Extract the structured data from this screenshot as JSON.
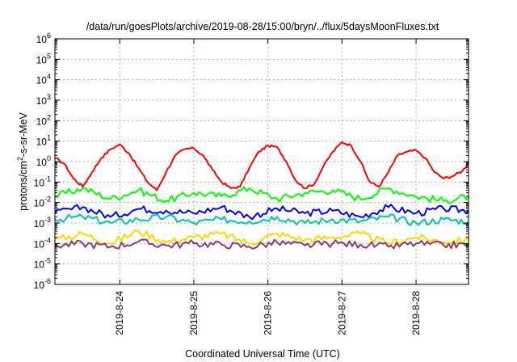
{
  "chart_data": {
    "type": "line",
    "title": "/data/run/goesPlots/archive/2019-08-28/15:00/bryn/../flux/5daysMoonFluxes.txt",
    "xlabel": "Coordinated Universal Time (UTC)",
    "ylabel": {
      "base": "protons/cm",
      "sup": "2",
      "rest": "-s-sr-MeV"
    },
    "y_scale": "log",
    "ylim": [
      1e-06,
      1000000.0
    ],
    "y_ticks": [
      {
        "value": 1e-06,
        "base": "10",
        "exp": "-6"
      },
      {
        "value": 1e-05,
        "base": "10",
        "exp": "-5"
      },
      {
        "value": 0.0001,
        "base": "10",
        "exp": "-4"
      },
      {
        "value": 0.001,
        "base": "10",
        "exp": "-3"
      },
      {
        "value": 0.01,
        "base": "10",
        "exp": "-2"
      },
      {
        "value": 0.1,
        "base": "10",
        "exp": "-1"
      },
      {
        "value": 1,
        "base": "10",
        "exp": "0"
      },
      {
        "value": 10.0,
        "base": "10",
        "exp": "1"
      },
      {
        "value": 100.0,
        "base": "10",
        "exp": "2"
      },
      {
        "value": 1000.0,
        "base": "10",
        "exp": "3"
      },
      {
        "value": 10000.0,
        "base": "10",
        "exp": "4"
      },
      {
        "value": 100000.0,
        "base": "10",
        "exp": "5"
      },
      {
        "value": 1000000.0,
        "base": "10",
        "exp": "6"
      }
    ],
    "xlim": [
      "2019-08-23 03:00",
      "2019-08-28 17:00"
    ],
    "x_ticks": [
      {
        "value": "2019-08-24 00:00",
        "label": "2019-8-24"
      },
      {
        "value": "2019-08-25 00:00",
        "label": "2019-8-25"
      },
      {
        "value": "2019-08-26 00:00",
        "label": "2019-8-26"
      },
      {
        "value": "2019-08-27 00:00",
        "label": "2019-8-27"
      },
      {
        "value": "2019-08-28 00:00",
        "label": "2019-8-28"
      }
    ],
    "grid": true,
    "legend": "none",
    "series": [
      {
        "color": "#ff0000",
        "x": [
          "2019-08-23 03:00",
          "2019-08-23 06:00",
          "2019-08-23 09:00",
          "2019-08-23 12:00",
          "2019-08-23 15:00",
          "2019-08-23 18:00",
          "2019-08-23 21:00",
          "2019-08-24 00:00",
          "2019-08-24 03:00",
          "2019-08-24 06:00",
          "2019-08-24 09:00",
          "2019-08-24 12:00",
          "2019-08-24 15:00",
          "2019-08-24 18:00",
          "2019-08-24 21:00",
          "2019-08-25 00:00",
          "2019-08-25 03:00",
          "2019-08-25 06:00",
          "2019-08-25 09:00",
          "2019-08-25 12:00",
          "2019-08-25 15:00",
          "2019-08-25 18:00",
          "2019-08-25 21:00",
          "2019-08-26 00:00",
          "2019-08-26 03:00",
          "2019-08-26 06:00",
          "2019-08-26 09:00",
          "2019-08-26 12:00",
          "2019-08-26 15:00",
          "2019-08-26 18:00",
          "2019-08-26 21:00",
          "2019-08-27 00:00",
          "2019-08-27 03:00",
          "2019-08-27 06:00",
          "2019-08-27 09:00",
          "2019-08-27 12:00",
          "2019-08-27 15:00",
          "2019-08-27 18:00",
          "2019-08-27 21:00",
          "2019-08-28 00:00",
          "2019-08-28 03:00",
          "2019-08-28 06:00",
          "2019-08-28 09:00",
          "2019-08-28 12:00",
          "2019-08-28 15:00",
          "2019-08-28 17:00"
        ],
        "values": [
          1.5,
          0.8,
          0.15,
          0.06,
          0.3,
          1.5,
          4,
          7,
          2.5,
          0.5,
          0.1,
          0.04,
          0.3,
          2,
          4,
          4.5,
          2,
          0.4,
          0.1,
          0.05,
          0.06,
          0.5,
          3,
          6,
          5,
          1,
          0.12,
          0.05,
          0.08,
          0.6,
          3,
          9,
          6,
          1,
          0.1,
          0.06,
          0.3,
          2,
          3,
          3.5,
          1.5,
          0.3,
          0.15,
          0.2,
          0.35,
          0.9
        ]
      },
      {
        "color": "#00ff00",
        "x": [
          "2019-08-23 03:00",
          "2019-08-23 12:00",
          "2019-08-23 21:00",
          "2019-08-24 06:00",
          "2019-08-24 15:00",
          "2019-08-25 00:00",
          "2019-08-25 09:00",
          "2019-08-25 18:00",
          "2019-08-26 03:00",
          "2019-08-26 12:00",
          "2019-08-26 21:00",
          "2019-08-27 06:00",
          "2019-08-27 15:00",
          "2019-08-28 00:00",
          "2019-08-28 09:00",
          "2019-08-28 17:00"
        ],
        "values": [
          0.02,
          0.05,
          0.015,
          0.04,
          0.012,
          0.03,
          0.02,
          0.05,
          0.015,
          0.03,
          0.04,
          0.015,
          0.05,
          0.02,
          0.012,
          0.02
        ]
      },
      {
        "color": "#0000ff",
        "x": [
          "2019-08-23 03:00",
          "2019-08-23 12:00",
          "2019-08-23 21:00",
          "2019-08-24 06:00",
          "2019-08-24 15:00",
          "2019-08-25 00:00",
          "2019-08-25 09:00",
          "2019-08-25 18:00",
          "2019-08-26 03:00",
          "2019-08-26 12:00",
          "2019-08-26 21:00",
          "2019-08-27 06:00",
          "2019-08-27 15:00",
          "2019-08-28 00:00",
          "2019-08-28 09:00",
          "2019-08-28 17:00"
        ],
        "values": [
          0.003,
          0.006,
          0.002,
          0.005,
          0.004,
          0.003,
          0.006,
          0.002,
          0.005,
          0.003,
          0.004,
          0.002,
          0.006,
          0.003,
          0.005,
          0.004
        ]
      },
      {
        "color": "#00c8a0",
        "x": [
          "2019-08-23 03:00",
          "2019-08-23 12:00",
          "2019-08-23 21:00",
          "2019-08-24 06:00",
          "2019-08-24 15:00",
          "2019-08-25 00:00",
          "2019-08-25 09:00",
          "2019-08-25 18:00",
          "2019-08-26 03:00",
          "2019-08-26 12:00",
          "2019-08-26 21:00",
          "2019-08-27 06:00",
          "2019-08-27 15:00",
          "2019-08-28 00:00",
          "2019-08-28 09:00",
          "2019-08-28 17:00"
        ],
        "values": [
          0.0015,
          0.002,
          0.001,
          0.0015,
          0.002,
          0.001,
          0.0015,
          0.0012,
          0.002,
          0.001,
          0.0015,
          0.0012,
          0.002,
          0.001,
          0.0015,
          0.0012
        ]
      },
      {
        "color": "#ffd700",
        "x": [
          "2019-08-23 03:00",
          "2019-08-23 12:00",
          "2019-08-23 21:00",
          "2019-08-24 06:00",
          "2019-08-24 15:00",
          "2019-08-25 00:00",
          "2019-08-25 09:00",
          "2019-08-25 18:00",
          "2019-08-26 03:00",
          "2019-08-26 12:00",
          "2019-08-26 21:00",
          "2019-08-27 06:00",
          "2019-08-27 15:00",
          "2019-08-28 00:00",
          "2019-08-28 09:00",
          "2019-08-28 17:00"
        ],
        "values": [
          0.00015,
          0.0003,
          0.0001,
          0.0004,
          0.00012,
          0.0002,
          0.0003,
          0.0001,
          0.0003,
          0.00015,
          0.0002,
          0.0003,
          0.0001,
          0.0002,
          0.00012,
          0.00015
        ]
      },
      {
        "color": "#8a3a7a",
        "x": [
          "2019-08-23 03:00",
          "2019-08-23 12:00",
          "2019-08-23 21:00",
          "2019-08-24 06:00",
          "2019-08-24 15:00",
          "2019-08-25 00:00",
          "2019-08-25 09:00",
          "2019-08-25 18:00",
          "2019-08-26 03:00",
          "2019-08-26 12:00",
          "2019-08-26 21:00",
          "2019-08-27 06:00",
          "2019-08-27 15:00",
          "2019-08-28 00:00",
          "2019-08-28 09:00",
          "2019-08-28 17:00"
        ],
        "values": [
          8e-05,
          0.0001,
          7e-05,
          0.00012,
          8e-05,
          0.0001,
          9e-05,
          7e-05,
          0.00011,
          8e-05,
          0.0001,
          9e-05,
          7e-05,
          0.0001,
          8e-05,
          9e-05
        ]
      }
    ]
  }
}
